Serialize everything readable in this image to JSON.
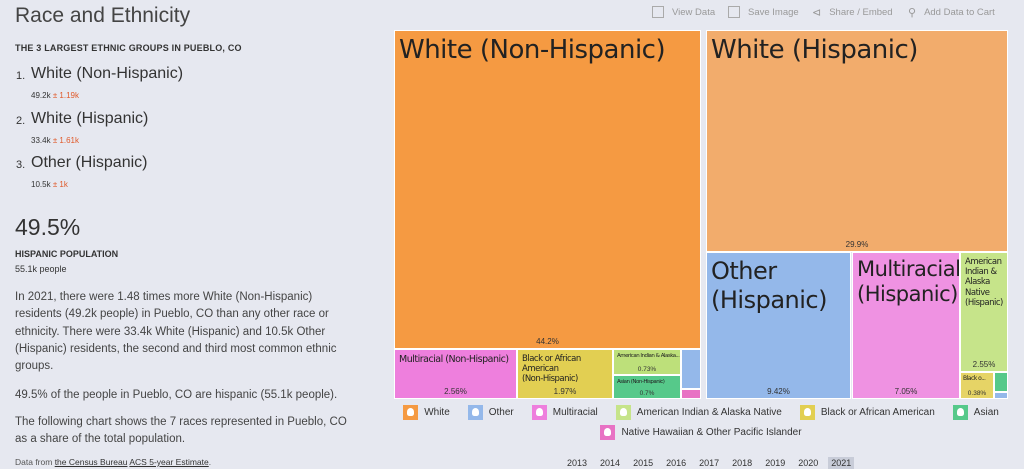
{
  "page": {
    "title": "Race and Ethnicity",
    "subhead": "THE 3 LARGEST ETHNIC GROUPS IN PUEBLO, CO",
    "top_groups": [
      {
        "rank": "1.",
        "name": "White (Non-Hispanic)",
        "value": "49.2k",
        "moe": "± 1.19k"
      },
      {
        "rank": "2.",
        "name": "White (Hispanic)",
        "value": "33.4k",
        "moe": "± 1.61k"
      },
      {
        "rank": "3.",
        "name": "Other (Hispanic)",
        "value": "10.5k",
        "moe": "± 1k"
      }
    ],
    "stat": {
      "value": "49.5%",
      "label": "HISPANIC POPULATION",
      "count": "55.1k people"
    },
    "paragraphs": [
      "In 2021, there were 1.48 times more White (Non-Hispanic) residents (49.2k people) in Pueblo, CO than any other race or ethnicity. There were 33.4k White (Hispanic) and 10.5k Other (Hispanic) residents, the second and third most common ethnic groups.",
      "49.5% of the people in Pueblo, CO are hispanic (55.1k people).",
      "The following chart shows the 7 races represented in Pueblo, CO as a share of the total population."
    ],
    "source": {
      "prefix": "Data from ",
      "link1": "the Census Bureau",
      "link2": "ACS 5-year Estimate",
      "suffix": "."
    }
  },
  "toolbar": {
    "view_data": "View Data",
    "save_image": "Save Image",
    "share": "Share / Embed",
    "add_cart": "Add Data to Cart"
  },
  "chart_data": {
    "type": "treemap",
    "tiles": [
      {
        "name": "White (Non-Hispanic)",
        "share": 44.2,
        "label": "44.2%",
        "group": "White",
        "color": "#f59a42"
      },
      {
        "name": "White (Hispanic)",
        "share": 29.9,
        "label": "29.9%",
        "group": "White",
        "color": "#f2ac6c"
      },
      {
        "name": "Other (Hispanic)",
        "share": 9.42,
        "label": "9.42%",
        "group": "Other",
        "color": "#94b8ea"
      },
      {
        "name": "Multiracial (Hispanic)",
        "share": 7.05,
        "label": "7.05%",
        "group": "Multiracial",
        "color": "#ef92e2"
      },
      {
        "name": "Multiracial (Non-Hispanic)",
        "share": 2.56,
        "label": "2.56%",
        "group": "Multiracial",
        "color": "#ee7fdd"
      },
      {
        "name": "American Indian & Alaska Native (Hispanic)",
        "share": 2.55,
        "label": "2.55%",
        "group": "American Indian & Alaska Native",
        "color": "#c6e48a"
      },
      {
        "name": "Black or African American (Non-Hispanic)",
        "share": 1.97,
        "label": "1.97%",
        "group": "Black or African American",
        "color": "#e2cf52"
      },
      {
        "name": "American Indian & Alaska Native (Non-Hispanic)",
        "share": 0.73,
        "label": "0.73%",
        "group": "American Indian & Alaska Native",
        "color": "#bde07a"
      },
      {
        "name": "Asian (Non-Hispanic)",
        "share": 0.7,
        "label": "0.7%",
        "group": "Asian",
        "color": "#56c98a"
      },
      {
        "name": "Black or African American (Hispanic)",
        "share": 0.38,
        "label": "0.38%",
        "group": "Black or African American",
        "color": "#e6d466"
      }
    ],
    "tile_labels": {
      "white_nh": "White (Non-Hispanic)",
      "white_h": "White (Hispanic)",
      "other_h_1": "Other",
      "other_h_2": "(Hispanic)",
      "multi_h_1": "Multiracial",
      "multi_h_2": "(Hispanic)",
      "multi_nh": "Multiracial (Non-Hispanic)",
      "aian_h_1": "American",
      "aian_h_2": "Indian &",
      "aian_h_3": "Alaska",
      "aian_h_4": "Native",
      "aian_h_5": "(Hispanic)",
      "black_nh_1": "Black or African American",
      "black_nh_2": "(Non-Hispanic)",
      "aian_nh": "American Indian & Alaska...",
      "asian_nh": "Asian (Non-Hispanic)",
      "black_h": "Black o..."
    },
    "legend": [
      {
        "label": "White",
        "color": "#f59a42"
      },
      {
        "label": "Other",
        "color": "#94b8ea"
      },
      {
        "label": "Multiracial",
        "color": "#ee7fdd"
      },
      {
        "label": "American Indian & Alaska Native",
        "color": "#c6e48a"
      },
      {
        "label": "Black or African American",
        "color": "#e2cf52"
      },
      {
        "label": "Asian",
        "color": "#56c98a"
      },
      {
        "label": "Native Hawaiian & Other Pacific Islander",
        "color": "#e872c4"
      }
    ]
  },
  "years": [
    "2013",
    "2014",
    "2015",
    "2016",
    "2017",
    "2018",
    "2019",
    "2020",
    "2021"
  ],
  "selected_year": "2021"
}
